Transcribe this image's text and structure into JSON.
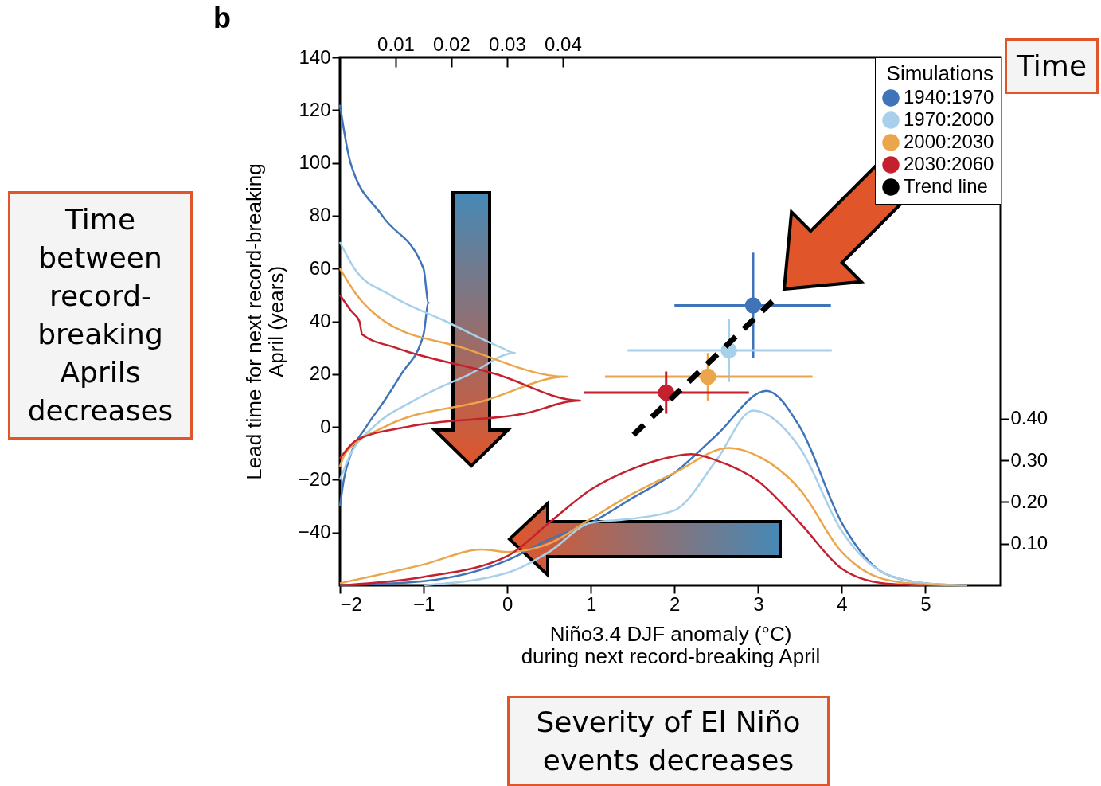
{
  "chart_data": {
    "type": "scatter",
    "xlabel": "Niño3.4 DJF anomaly (°C)\nduring next record-breaking April",
    "ylabel": "Lead time for next record-breaking\nApril (years)",
    "legend_title": "Simulations",
    "legend": "top right",
    "grid": false,
    "annotations": [
      "b",
      "Time between record-breaking Aprils decreases",
      "Severity of El Niño events decreases",
      "Time"
    ],
    "xlim": [
      -2,
      5.9
    ],
    "xticks": [
      {
        "value": -2,
        "label": "−2"
      },
      {
        "value": -1,
        "label": "−1"
      },
      0,
      1,
      2,
      3,
      4,
      5
    ],
    "ylim": [
      -60,
      140
    ],
    "yticks": [
      {
        "value": -40,
        "label": "−40"
      },
      {
        "value": -20,
        "label": "−20"
      },
      0,
      20,
      40,
      60,
      80,
      100,
      120,
      140
    ],
    "x2lim": [
      0,
      0.1186
    ],
    "x2ticks": [
      0.01,
      0.02,
      0.03,
      0.04
    ],
    "y2lim": [
      0,
      1.268
    ],
    "y2ticks": [
      {
        "value": 0.1,
        "label": "0.10"
      },
      {
        "value": 0.2,
        "label": "0.20"
      },
      {
        "value": 0.3,
        "label": "0.30"
      },
      {
        "value": 0.4,
        "label": "0.40"
      }
    ],
    "series": [
      {
        "type": "line",
        "axis": "x2",
        "color": "#3f74b8",
        "marker": "none",
        "line_style": "solid",
        "x": [
          0,
          0.0019,
          0.0076,
          0.015,
          0.0159,
          0.015,
          0.011,
          0.008,
          0.0047,
          0.002,
          0.0007,
          0
        ],
        "values": [
          122,
          100,
          80,
          60,
          47,
          35,
          20,
          10,
          0,
          -10,
          -20,
          -30
        ]
      },
      {
        "type": "line",
        "axis": "x2",
        "color": "#a8d0ea",
        "marker": "none",
        "line_style": "solid",
        "x": [
          0,
          0.0026,
          0.009,
          0.019,
          0.029,
          0.0314,
          0.0233,
          0.0133,
          0.006,
          0.002,
          0
        ],
        "values": [
          70,
          60,
          50,
          40,
          30,
          28,
          20,
          10,
          0,
          -10,
          -20
        ]
      },
      {
        "type": "line",
        "axis": "x2",
        "color": "#eba64b",
        "marker": "none",
        "line_style": "solid",
        "x": [
          0,
          0.003,
          0.008,
          0.022,
          0.0407,
          0.026,
          0.008,
          0.001,
          0
        ],
        "values": [
          60,
          50,
          40,
          30,
          19,
          10,
          0,
          -10,
          -15
        ]
      },
      {
        "type": "line",
        "axis": "x2",
        "color": "#c4202e",
        "marker": "none",
        "line_style": "solid",
        "x": [
          0,
          0.002,
          0.0035,
          0.004,
          0.01,
          0.028,
          0.0431,
          0.033,
          0.012,
          0.003,
          0
        ],
        "values": [
          50,
          44,
          40,
          35,
          30,
          20,
          10,
          5,
          0,
          -5,
          -12
        ]
      },
      {
        "type": "line",
        "axis": "y2",
        "color": "#3f74b8",
        "marker": "none",
        "line_style": "solid",
        "x": [
          -2,
          -1,
          0,
          0.5,
          1,
          1.5,
          2,
          2.5,
          3.1,
          3.5,
          4,
          4.5,
          5,
          5.5
        ],
        "values": [
          0,
          0.01,
          0.06,
          0.11,
          0.15,
          0.21,
          0.27,
          0.36,
          0.467,
          0.38,
          0.15,
          0.03,
          0.005,
          0
        ]
      },
      {
        "type": "line",
        "axis": "y2",
        "color": "#a8d0ea",
        "marker": "none",
        "line_style": "solid",
        "x": [
          -1,
          0,
          0.5,
          1,
          1.5,
          2,
          2.5,
          2.94,
          3.5,
          4,
          4.5,
          5,
          5.5
        ],
        "values": [
          0,
          0.03,
          0.08,
          0.15,
          0.16,
          0.18,
          0.3,
          0.42,
          0.33,
          0.13,
          0.03,
          0.005,
          0
        ]
      },
      {
        "type": "line",
        "axis": "y2",
        "color": "#eba64b",
        "marker": "none",
        "line_style": "solid",
        "x": [
          -2,
          -1,
          -0.3,
          0,
          0.5,
          1,
          1.5,
          2,
          2.65,
          3,
          3.5,
          4,
          4.5,
          5,
          5.5
        ],
        "values": [
          0.005,
          0.05,
          0.086,
          0.08,
          0.1,
          0.16,
          0.22,
          0.27,
          0.33,
          0.31,
          0.23,
          0.08,
          0.015,
          0.002,
          0
        ]
      },
      {
        "type": "line",
        "axis": "y2",
        "color": "#c4202e",
        "marker": "none",
        "line_style": "solid",
        "x": [
          -2,
          -1,
          0,
          0.5,
          1,
          1.5,
          2,
          2.2,
          2.5,
          3,
          3.5,
          4,
          4.5,
          5
        ],
        "values": [
          0,
          0.02,
          0.07,
          0.15,
          0.23,
          0.28,
          0.31,
          0.315,
          0.3,
          0.25,
          0.15,
          0.04,
          0.005,
          0
        ]
      },
      {
        "name": "1940:1970",
        "color": "#3f74b8",
        "marker": "circle",
        "x": [
          2.94
        ],
        "values": [
          46
        ],
        "errors": [
          [
            26,
            66
          ]
        ],
        "xerrors": [
          [
            2.0,
            3.87
          ]
        ]
      },
      {
        "name": "1970:2000",
        "color": "#a8d0ea",
        "marker": "circle",
        "x": [
          2.65
        ],
        "values": [
          29
        ],
        "errors": [
          [
            17,
            41
          ]
        ],
        "xerrors": [
          [
            1.44,
            3.88
          ]
        ]
      },
      {
        "name": "2000:2030",
        "color": "#eba64b",
        "marker": "circle",
        "x": [
          2.4
        ],
        "values": [
          19
        ],
        "errors": [
          [
            10,
            28
          ]
        ],
        "xerrors": [
          [
            1.17,
            3.65
          ]
        ]
      },
      {
        "name": "2030:2060",
        "color": "#c4202e",
        "marker": "circle",
        "x": [
          1.9
        ],
        "values": [
          13
        ],
        "errors": [
          [
            5,
            21
          ]
        ],
        "xerrors": [
          [
            0.92,
            2.89
          ]
        ]
      },
      {
        "type": "line",
        "name": "Trend line",
        "color": "#000000",
        "marker": "none",
        "line_style": "dashed",
        "x": [
          1.51,
          3.25
        ],
        "values": [
          -3,
          50
        ]
      }
    ]
  }
}
